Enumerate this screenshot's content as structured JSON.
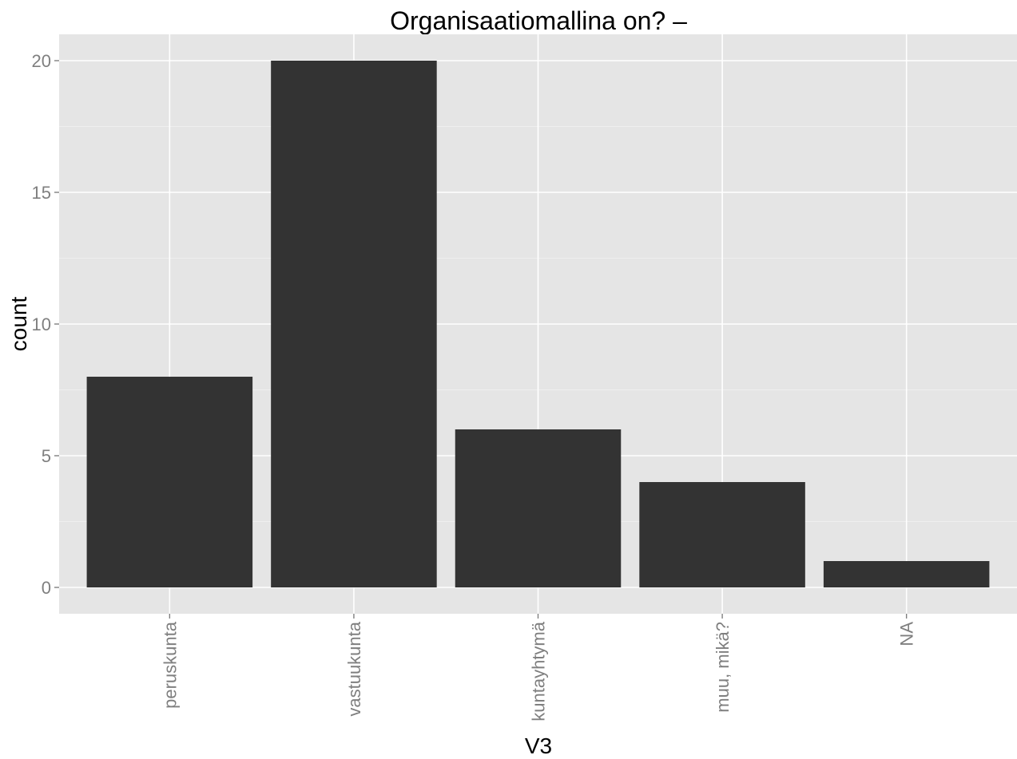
{
  "chart_data": {
    "type": "bar",
    "title": "Organisaatiomallina on? –",
    "xlabel": "V3",
    "ylabel": "count",
    "categories": [
      "peruskunta",
      "vastuukunta",
      "kuntayhtymä",
      "muu, mikä?",
      "NA"
    ],
    "values": [
      8,
      20,
      6,
      4,
      1
    ],
    "ylim": [
      -1,
      21
    ],
    "yticks": [
      0,
      5,
      10,
      15,
      20
    ],
    "grid": true,
    "legend": "none",
    "colors": {
      "bar": "#333333",
      "panel": "#e5e5e5",
      "grid": "#ffffff",
      "tick_text": "#7f7f7f"
    }
  }
}
